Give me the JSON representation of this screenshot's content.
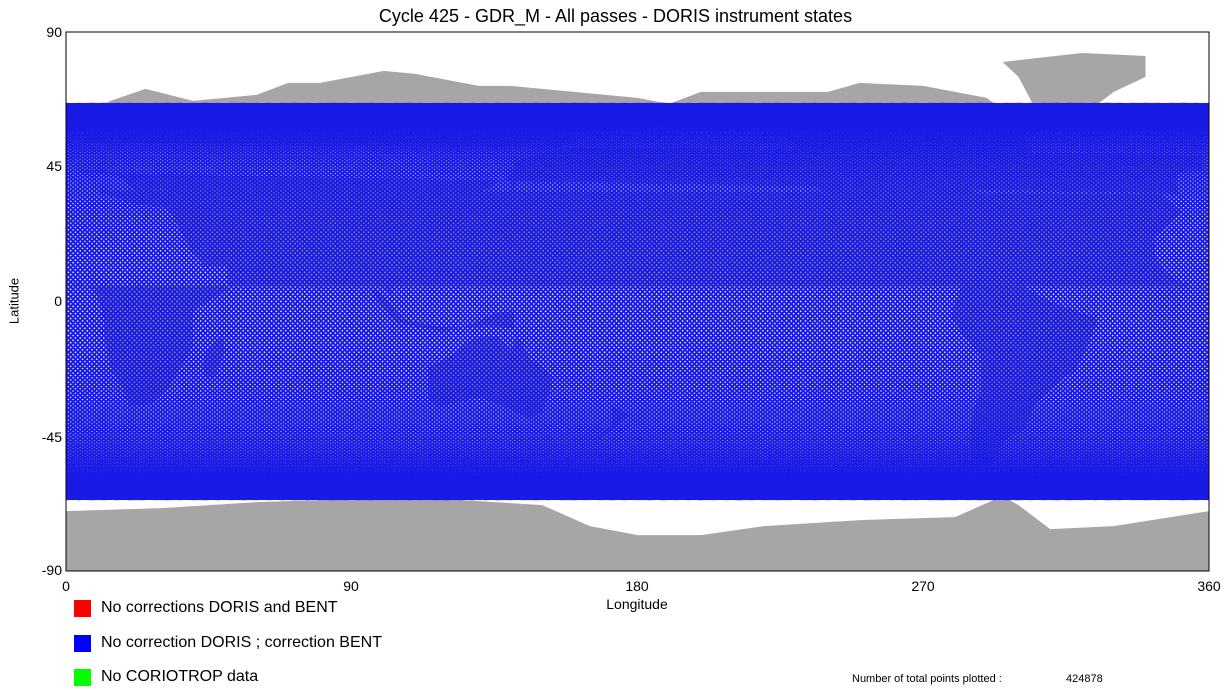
{
  "title": "Cycle 425 - GDR_M -  All passes - DORIS instrument states",
  "colors": {
    "land": "#a6a6a6",
    "ocean": "#ffffff",
    "track": "#1a1ae6"
  },
  "map_data": {
    "projection": "equirectangular",
    "lon_range": [
      0,
      360
    ],
    "lat_range": [
      -90,
      90
    ],
    "track_inclination_deg": 66,
    "track_count": 127,
    "land_icon": "continents-gray"
  },
  "axes": {
    "xlabel": "Longitude",
    "ylabel": "Latitude",
    "xticks": [
      "0",
      "90",
      "180",
      "270",
      "360"
    ],
    "yticks": [
      "90",
      "45",
      "0",
      "-45",
      "-90"
    ]
  },
  "legend": [
    {
      "label": "No corrections DORIS and BENT",
      "color": "#ff0000"
    },
    {
      "label": "No correction DORIS ; correction BENT",
      "color": "#0000ff"
    },
    {
      "label": "No CORIOTROP data",
      "color": "#00ff00"
    }
  ],
  "footer": {
    "label": "Number of total points plotted :",
    "value": "424878"
  }
}
